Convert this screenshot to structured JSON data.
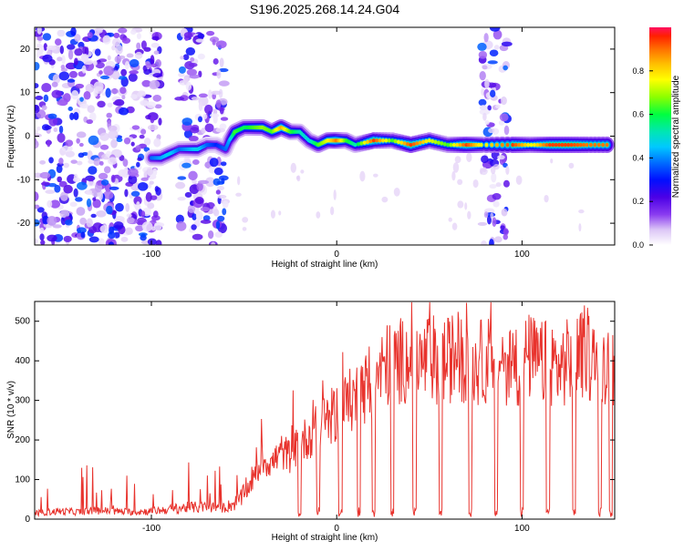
{
  "title": "S196.2025.268.14.24.G04",
  "chart_data": [
    {
      "type": "heatmap",
      "title": "S196.2025.268.14.24.G04",
      "xlabel": "Height of straight line (km)",
      "ylabel": "Frequency (Hz)",
      "xlim": [
        -163,
        150
      ],
      "ylim": [
        -25,
        25
      ],
      "xticks": [
        -100,
        0,
        100
      ],
      "yticks": [
        -20,
        -10,
        0,
        10,
        20
      ],
      "colorbar": {
        "label": "Normalized spectral amplitude",
        "range": [
          0,
          1
        ],
        "ticks": [
          0.0,
          0.2,
          0.4,
          0.6,
          0.8
        ],
        "colors": [
          "#ffffff",
          "#dcc6f6",
          "#8a3cf0",
          "#4b00e6",
          "#0010ff",
          "#0070ff",
          "#00c8ff",
          "#00e6b4",
          "#00ff40",
          "#8cff00",
          "#ffff00",
          "#ffc000",
          "#ff7000",
          "#ff2000",
          "#ff1060"
        ]
      },
      "noise_regions_km": [
        [
          -163,
          -95
        ],
        [
          -85,
          -60
        ],
        [
          78,
          92
        ]
      ],
      "ridge": {
        "x": [
          -100,
          -95,
          -90,
          -85,
          -80,
          -75,
          -70,
          -65,
          -60,
          -58,
          -55,
          -50,
          -45,
          -40,
          -35,
          -30,
          -25,
          -20,
          -15,
          -10,
          -5,
          0,
          5,
          10,
          20,
          30,
          40,
          50,
          60,
          70,
          78,
          95,
          105,
          115,
          125,
          135,
          148
        ],
        "y": [
          -5,
          -5,
          -4,
          -3,
          -3,
          -3,
          -2,
          -2,
          -3,
          -1,
          1,
          2,
          2,
          2,
          1,
          2,
          1,
          1,
          -1,
          -2,
          -1,
          -1,
          -1,
          -2,
          -1,
          -1,
          -2,
          -1,
          -2,
          -2,
          -2,
          -2,
          -2,
          -2,
          -2,
          -2,
          -2
        ],
        "amplitude": [
          0.35,
          0.4,
          0.45,
          0.35,
          0.4,
          0.45,
          0.35,
          0.3,
          0.35,
          0.4,
          0.6,
          0.55,
          0.6,
          0.65,
          0.6,
          0.8,
          0.6,
          0.5,
          0.45,
          0.6,
          0.7,
          0.85,
          0.6,
          0.5,
          0.9,
          0.6,
          0.9,
          0.7,
          0.6,
          0.9,
          0.7,
          0.9,
          0.7,
          0.9,
          0.9,
          0.85,
          0.85
        ]
      }
    },
    {
      "type": "line",
      "xlabel": "Height of straight line (km)",
      "ylabel": "SNR (10 * v/v)",
      "xlim": [
        -163,
        150
      ],
      "ylim": [
        0,
        550
      ],
      "xticks": [
        -100,
        0,
        100
      ],
      "yticks": [
        0,
        100,
        200,
        300,
        400,
        500
      ],
      "color": "#e8332d",
      "series": [
        {
          "name": "SNR",
          "x": [
            -163,
            -150,
            -140,
            -130,
            -120,
            -110,
            -100,
            -90,
            -80,
            -70,
            -60,
            -55,
            -50,
            -45,
            -40,
            -35,
            -30,
            -25,
            -20,
            -15,
            -10,
            -5,
            0,
            5,
            10,
            15,
            20,
            25,
            30,
            35,
            40,
            45,
            50,
            55,
            60,
            65,
            70,
            75,
            80,
            85,
            90,
            95,
            100,
            105,
            110,
            115,
            120,
            125,
            130,
            135,
            140,
            145,
            150
          ],
          "y": [
            15,
            20,
            18,
            22,
            20,
            18,
            20,
            25,
            30,
            30,
            30,
            40,
            60,
            100,
            150,
            140,
            170,
            160,
            190,
            210,
            230,
            250,
            270,
            290,
            310,
            330,
            350,
            380,
            400,
            400,
            410,
            390,
            410,
            400,
            400,
            420,
            400,
            390,
            400,
            410,
            400,
            390,
            400,
            410,
            390,
            400,
            380,
            400,
            410,
            420,
            390,
            400,
            390
          ]
        }
      ],
      "dropouts_km": [
        -20,
        -10,
        2,
        12,
        20,
        30,
        42,
        56,
        72,
        86,
        100,
        114,
        128,
        142,
        148
      ]
    }
  ]
}
